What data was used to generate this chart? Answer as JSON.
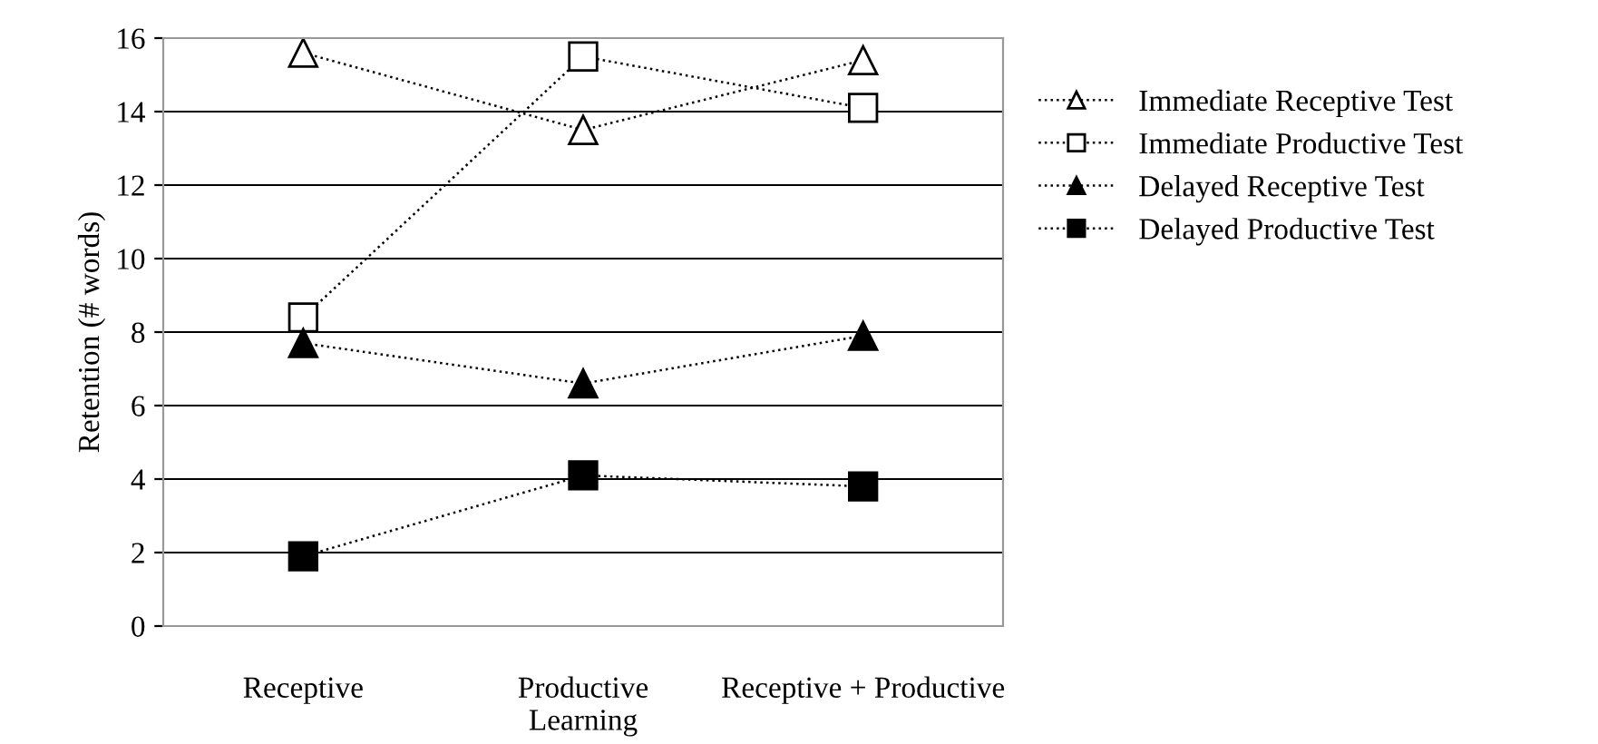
{
  "chart_data": {
    "type": "line",
    "xlabel": "Learning",
    "ylabel": "Retention (# words)",
    "categories": [
      "Receptive",
      "Productive",
      "Receptive + Productive"
    ],
    "series": [
      {
        "name": "Immediate Receptive Test",
        "color": "#ffffff",
        "marker": "triangle",
        "values": [
          15.6,
          13.5,
          15.4
        ]
      },
      {
        "name": "Immediate Productive Test",
        "color": "#ffffff",
        "marker": "square",
        "values": [
          8.4,
          15.5,
          14.1
        ]
      },
      {
        "name": "Delayed Receptive Test",
        "color": "#000000",
        "marker": "triangle",
        "values": [
          7.7,
          6.6,
          7.9
        ]
      },
      {
        "name": "Delayed Productive Test",
        "color": "#000000",
        "marker": "square",
        "values": [
          1.9,
          4.1,
          3.8
        ]
      }
    ],
    "ylim": [
      0,
      16
    ],
    "yticks": [
      0,
      2,
      4,
      6,
      8,
      10,
      12,
      14,
      16
    ],
    "grid": "y",
    "legend": "right",
    "line_style": "dotted"
  }
}
